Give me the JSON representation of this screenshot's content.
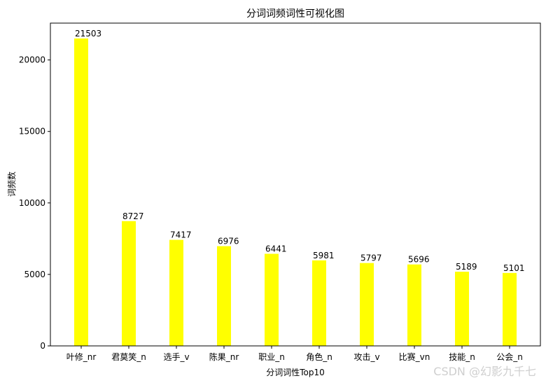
{
  "chart_data": {
    "type": "bar",
    "title": "分词词频词性可视化图",
    "xlabel": "分词词性Top10",
    "ylabel": "词频数",
    "categories": [
      "叶修_nr",
      "君莫笑_n",
      "选手_v",
      "陈果_nr",
      "职业_n",
      "角色_n",
      "攻击_v",
      "比赛_vn",
      "技能_n",
      "公会_n"
    ],
    "values": [
      21503,
      8727,
      7417,
      6976,
      6441,
      5981,
      5797,
      5696,
      5189,
      5101
    ],
    "ylim": [
      0,
      22578
    ],
    "yticks": [
      0,
      5000,
      10000,
      15000,
      20000
    ],
    "bar_color": "#ffff00",
    "grid": false,
    "legend": "none"
  },
  "watermark": "CSDN @幻影九千七"
}
